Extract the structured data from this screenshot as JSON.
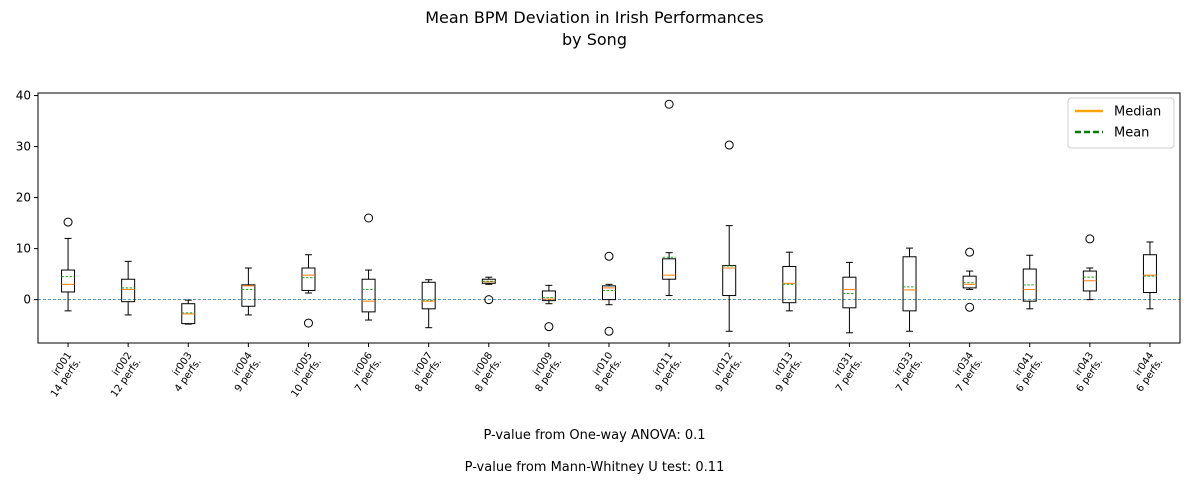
{
  "chart_data": {
    "type": "box",
    "title_line1": "Mean BPM Deviation in Irish Performances",
    "title_line2": "by Song",
    "ylim": [
      -8.5,
      40.5
    ],
    "yticks": [
      0,
      10,
      20,
      30,
      40
    ],
    "legend": {
      "placement": "top-right",
      "entries": [
        {
          "label": "Median",
          "color": "#ffa500",
          "style": "solid"
        },
        {
          "label": "Mean",
          "color": "#008000",
          "style": "dashed"
        }
      ]
    },
    "reference_line": {
      "y": 0,
      "color": "#1f77b4",
      "style": "dashed"
    },
    "groups": [
      {
        "id": "ir001",
        "perfs": "14 perfs.",
        "whislo": -2.2,
        "q1": 1.5,
        "med": 3.0,
        "mean": 4.5,
        "q3": 5.8,
        "whishi": 12.0,
        "fliers": [
          15.2
        ]
      },
      {
        "id": "ir002",
        "perfs": "12 perfs.",
        "whislo": -3.0,
        "q1": -0.4,
        "med": 2.0,
        "mean": 2.3,
        "q3": 4.0,
        "whishi": 7.5,
        "fliers": []
      },
      {
        "id": "ir003",
        "perfs": "4 perfs.",
        "whislo": -4.8,
        "q1": -4.7,
        "med": -2.8,
        "mean": -2.6,
        "q3": -0.8,
        "whishi": -0.1,
        "fliers": []
      },
      {
        "id": "ir004",
        "perfs": "9 perfs.",
        "whislo": -3.0,
        "q1": -1.3,
        "med": 2.7,
        "mean": 2.0,
        "q3": 2.9,
        "whishi": 6.2,
        "fliers": []
      },
      {
        "id": "ir005",
        "perfs": "10 perfs.",
        "whislo": 1.3,
        "q1": 1.8,
        "med": 4.8,
        "mean": 4.3,
        "q3": 6.2,
        "whishi": 8.8,
        "fliers": [
          -4.6
        ]
      },
      {
        "id": "ir006",
        "perfs": "7 perfs.",
        "whislo": -4.0,
        "q1": -2.4,
        "med": -0.3,
        "mean": 2.0,
        "q3": 4.0,
        "whishi": 5.8,
        "fliers": [
          16.0
        ]
      },
      {
        "id": "ir007",
        "perfs": "8 perfs.",
        "whislo": -5.5,
        "q1": -1.8,
        "med": -0.3,
        "mean": -0.1,
        "q3": 3.4,
        "whishi": 3.9,
        "fliers": []
      },
      {
        "id": "ir008",
        "perfs": "8 perfs.",
        "whislo": 3.0,
        "q1": 3.2,
        "med": 3.5,
        "mean": 3.6,
        "q3": 4.0,
        "whishi": 4.4,
        "fliers": [
          0.0
        ]
      },
      {
        "id": "ir009",
        "perfs": "8 perfs.",
        "whislo": -0.8,
        "q1": -0.2,
        "med": 0.1,
        "mean": 0.4,
        "q3": 1.7,
        "whishi": 2.8,
        "fliers": [
          -5.3
        ]
      },
      {
        "id": "ir010",
        "perfs": "8 perfs.",
        "whislo": -1.0,
        "q1": 0.0,
        "med": 2.3,
        "mean": 1.8,
        "q3": 2.7,
        "whishi": 3.0,
        "fliers": [
          8.5,
          -6.2
        ]
      },
      {
        "id": "ir011",
        "perfs": "9 perfs.",
        "whislo": 0.8,
        "q1": 4.0,
        "med": 4.8,
        "mean": 8.3,
        "q3": 8.0,
        "whishi": 9.2,
        "fliers": [
          38.3
        ]
      },
      {
        "id": "ir012",
        "perfs": "9 perfs.",
        "whislo": -6.2,
        "q1": 0.8,
        "med": 6.2,
        "mean": 6.6,
        "q3": 6.7,
        "whishi": 14.5,
        "fliers": [
          30.3
        ]
      },
      {
        "id": "ir013",
        "perfs": "9 perfs.",
        "whislo": -2.2,
        "q1": -0.6,
        "med": 3.2,
        "mean": 3.0,
        "q3": 6.5,
        "whishi": 9.3,
        "fliers": []
      },
      {
        "id": "ir031",
        "perfs": "7 perfs.",
        "whislo": -6.5,
        "q1": -1.6,
        "med": 2.0,
        "mean": 1.2,
        "q3": 4.4,
        "whishi": 7.3,
        "fliers": []
      },
      {
        "id": "ir033",
        "perfs": "7 perfs.",
        "whislo": -6.2,
        "q1": -2.2,
        "med": 1.9,
        "mean": 2.5,
        "q3": 8.4,
        "whishi": 10.1,
        "fliers": []
      },
      {
        "id": "ir034",
        "perfs": "7 perfs.",
        "whislo": 2.0,
        "q1": 2.3,
        "med": 3.0,
        "mean": 3.3,
        "q3": 4.6,
        "whishi": 5.6,
        "fliers": [
          9.3,
          -1.5
        ]
      },
      {
        "id": "ir041",
        "perfs": "6 perfs.",
        "whislo": -1.8,
        "q1": -0.3,
        "med": 2.0,
        "mean": 2.9,
        "q3": 6.0,
        "whishi": 8.7,
        "fliers": []
      },
      {
        "id": "ir043",
        "perfs": "6 perfs.",
        "whislo": 0.0,
        "q1": 1.7,
        "med": 3.7,
        "mean": 4.4,
        "q3": 5.6,
        "whishi": 6.2,
        "fliers": [
          11.9
        ]
      },
      {
        "id": "ir044",
        "perfs": "6 perfs.",
        "whislo": -1.8,
        "q1": 1.4,
        "med": 4.8,
        "mean": 4.6,
        "q3": 8.8,
        "whishi": 11.3,
        "fliers": []
      }
    ]
  },
  "footer": {
    "anova": "P-value from One-way ANOVA: 0.1",
    "mannwhitney": "P-value from Mann-Whitney U test: 0.11"
  }
}
